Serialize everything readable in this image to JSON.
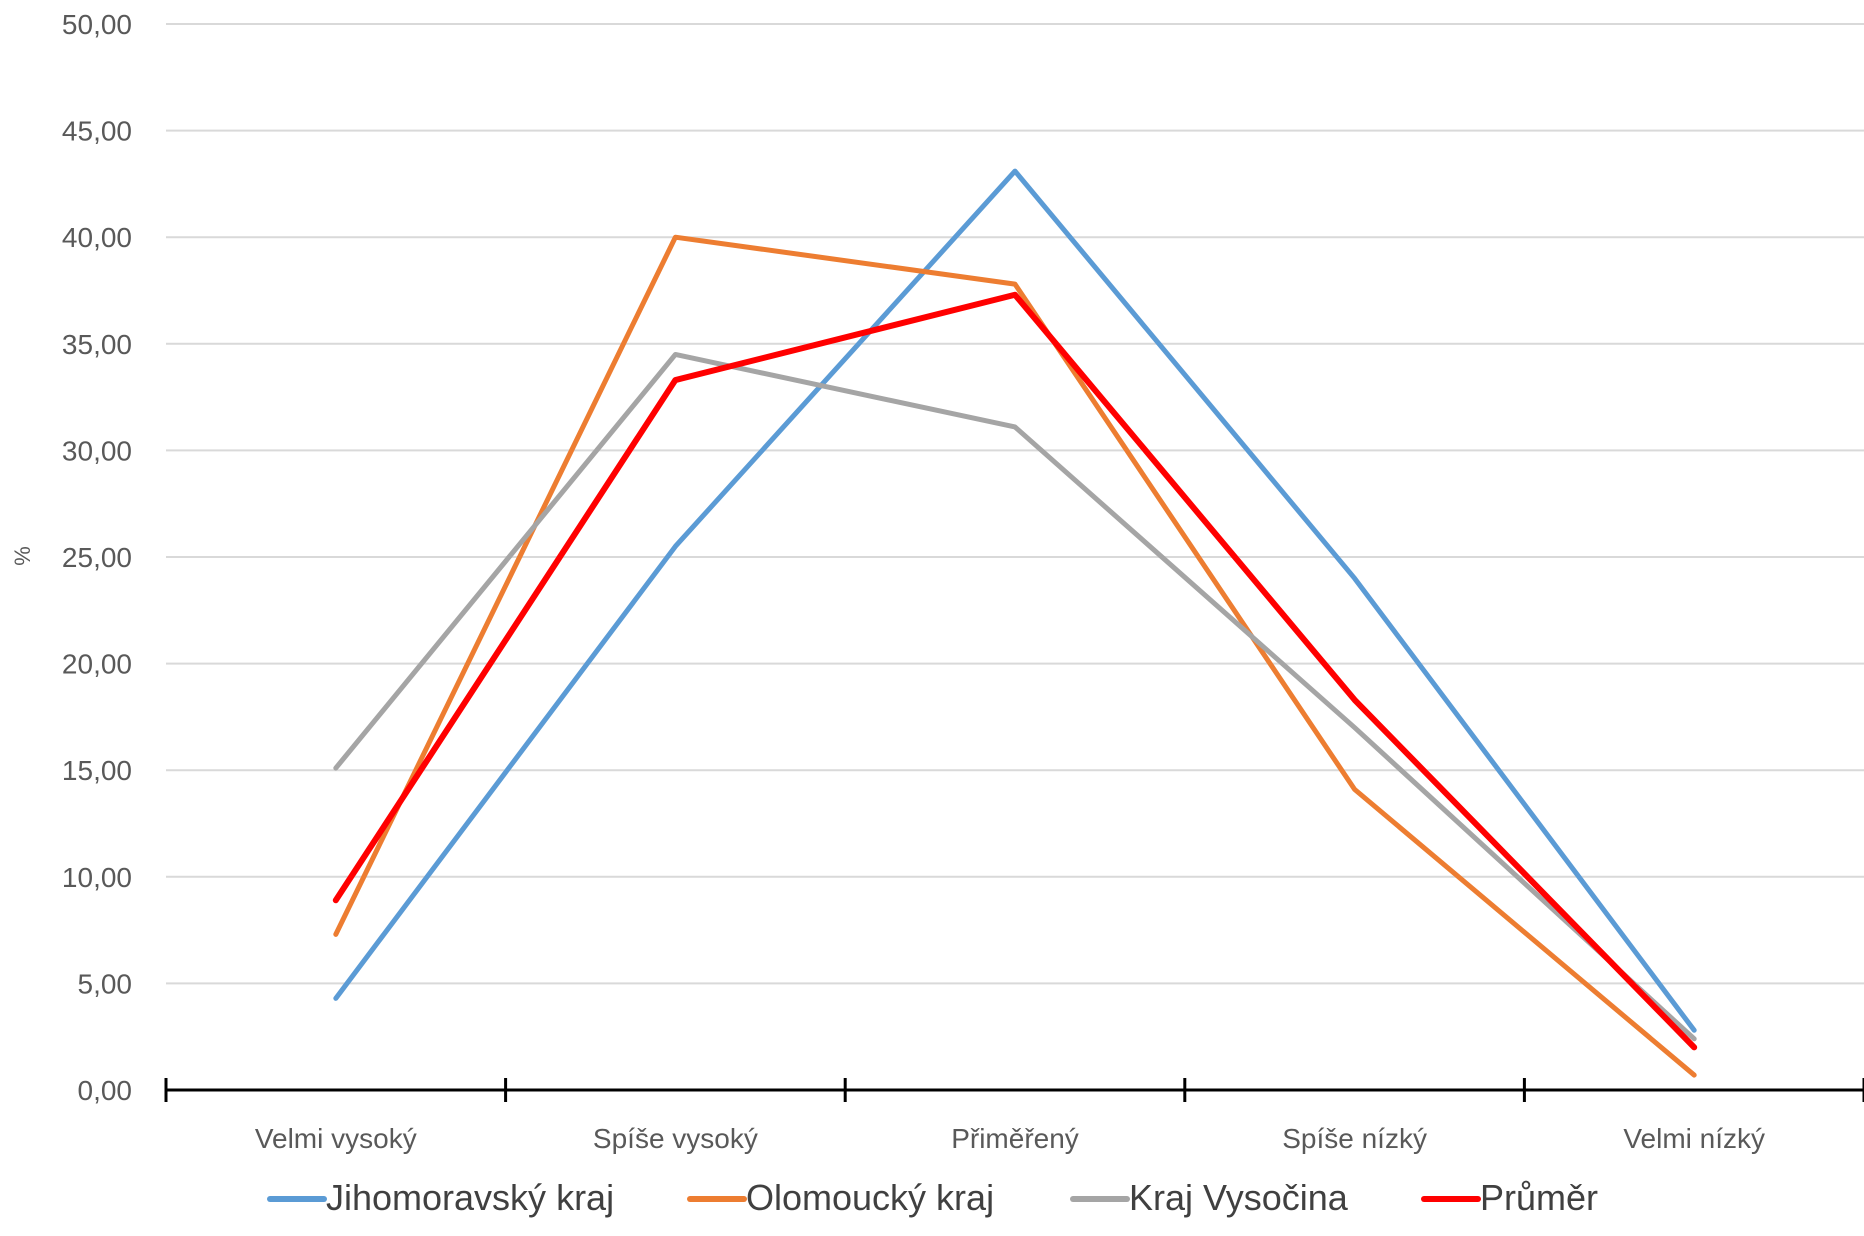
{
  "chart_data": {
    "type": "line",
    "title": "",
    "xlabel": "",
    "ylabel": "%",
    "ylim": [
      0,
      50
    ],
    "ytick_step": 5,
    "ytick_labels": [
      "0,00",
      "5,00",
      "10,00",
      "15,00",
      "20,00",
      "25,00",
      "30,00",
      "35,00",
      "40,00",
      "45,00",
      "50,00"
    ],
    "categories": [
      "Velmi vysoký",
      "Spíše vysoký",
      "Přiměřený",
      "Spíše nízký",
      "Velmi nízký"
    ],
    "grid": true,
    "legend_position": "bottom",
    "series": [
      {
        "name": "Jihomoravský kraj",
        "color": "#5B9BD5",
        "values": [
          4.3,
          25.5,
          43.1,
          24.0,
          2.8
        ]
      },
      {
        "name": "Olomoucký kraj",
        "color": "#ED7D31",
        "values": [
          7.3,
          40.0,
          37.8,
          14.1,
          0.7
        ]
      },
      {
        "name": "Kraj Vysočina",
        "color": "#A5A5A5",
        "values": [
          15.1,
          34.5,
          31.1,
          17.0,
          2.4
        ]
      },
      {
        "name": "Průměr",
        "color": "#FF0000",
        "values": [
          8.9,
          33.3,
          37.3,
          18.3,
          2.0
        ]
      }
    ]
  }
}
